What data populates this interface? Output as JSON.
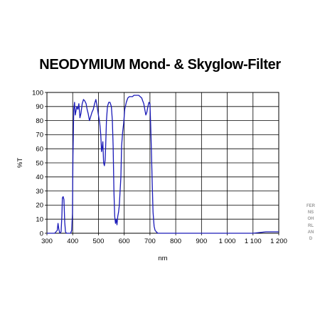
{
  "watermark": "FERNSOHRLAND",
  "chart_data": {
    "type": "line",
    "title": "NEODYMIUM Mond- & Skyglow-Filter",
    "xlabel": "nm",
    "ylabel": "%T",
    "xlim": [
      300,
      1200
    ],
    "ylim": [
      0,
      100
    ],
    "x_ticks": [
      300,
      400,
      500,
      600,
      700,
      800,
      900,
      1000,
      1100,
      1200
    ],
    "x_tick_labels": [
      "300",
      "400",
      "500",
      "600",
      "700",
      "800",
      "900",
      "1 000",
      "1 100",
      "1 200"
    ],
    "y_ticks": [
      0,
      10,
      20,
      30,
      40,
      50,
      60,
      70,
      80,
      90,
      100
    ],
    "grid": true,
    "line_color": "#1a1ab8",
    "series": [
      {
        "x": [
          300,
          330,
          340,
          343,
          346,
          350,
          355,
          358,
          360,
          363,
          366,
          369,
          372,
          376,
          380,
          385,
          392,
          396,
          399,
          401,
          404,
          407,
          410,
          413,
          416,
          420,
          424,
          428,
          432,
          437,
          442,
          447,
          452,
          456,
          460,
          465,
          470,
          475,
          480,
          485,
          490,
          495,
          500,
          505,
          509,
          512,
          514,
          517,
          520,
          523,
          526,
          528,
          531,
          535,
          540,
          545,
          550,
          554,
          557,
          560,
          563,
          566,
          569,
          572,
          575,
          578,
          581,
          584,
          587,
          590,
          594,
          598,
          602,
          608,
          614,
          620,
          626,
          632,
          638,
          644,
          650,
          656,
          662,
          668,
          672,
          676,
          680,
          684,
          688,
          692,
          696,
          700,
          703,
          706,
          709,
          712,
          716,
          720,
          725,
          730,
          740,
          760,
          800,
          850,
          900,
          1000,
          1100,
          1150,
          1200
        ],
        "y": [
          0,
          0,
          2,
          7,
          3,
          0,
          1,
          12,
          25,
          26,
          24,
          8,
          1,
          0,
          0,
          0,
          0,
          2,
          14,
          55,
          88,
          93,
          84,
          87,
          90,
          88,
          92,
          82,
          85,
          92,
          95,
          94,
          92,
          88,
          85,
          80,
          83,
          86,
          88,
          92,
          95,
          90,
          84,
          78,
          70,
          58,
          60,
          65,
          50,
          48,
          52,
          62,
          80,
          90,
          93,
          93,
          90,
          80,
          62,
          30,
          12,
          7,
          10,
          6,
          12,
          15,
          20,
          30,
          40,
          62,
          72,
          78,
          88,
          93,
          96,
          97,
          97,
          97,
          98,
          98,
          98,
          98,
          97,
          96,
          94,
          92,
          88,
          84,
          86,
          90,
          93,
          92,
          75,
          55,
          35,
          15,
          5,
          2,
          1,
          0,
          0,
          0,
          0,
          0,
          0,
          0,
          0,
          1,
          1
        ]
      }
    ]
  }
}
